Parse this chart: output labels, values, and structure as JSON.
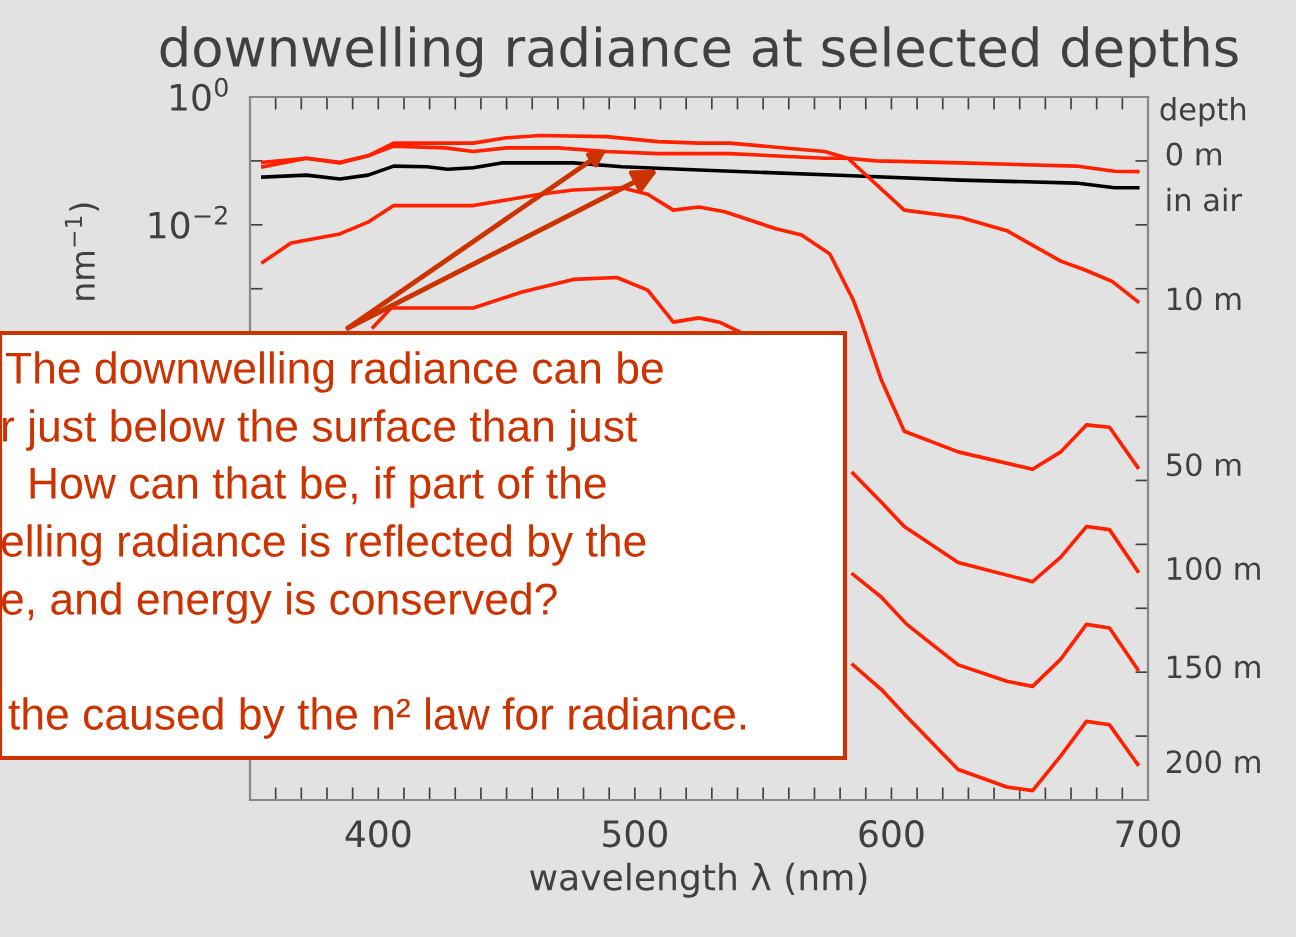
{
  "chart_data": {
    "type": "line",
    "title": "downwelling radiance at selected depths",
    "xlabel": "wavelength λ (nm)",
    "ylabel": "nm$^{−1}$)",
    "legend_title": "depth",
    "log": "y",
    "grid": false,
    "legend": false,
    "marker": "none",
    "line_style": "solid",
    "xlim": [
      350,
      700
    ],
    "ylim": [
      1e-11,
      1
    ],
    "xticks": [
      {
        "value": 360,
        "label": null
      },
      {
        "value": 370,
        "label": null
      },
      {
        "value": 380,
        "label": null
      },
      {
        "value": 390,
        "label": null
      },
      400,
      {
        "value": 410,
        "label": null
      },
      {
        "value": 420,
        "label": null
      },
      {
        "value": 430,
        "label": null
      },
      {
        "value": 440,
        "label": null
      },
      {
        "value": 450,
        "label": null
      },
      {
        "value": 460,
        "label": null
      },
      {
        "value": 470,
        "label": null
      },
      {
        "value": 480,
        "label": null
      },
      {
        "value": 490,
        "label": null
      },
      500,
      {
        "value": 510,
        "label": null
      },
      {
        "value": 520,
        "label": null
      },
      {
        "value": 530,
        "label": null
      },
      {
        "value": 540,
        "label": null
      },
      {
        "value": 550,
        "label": null
      },
      {
        "value": 560,
        "label": null
      },
      {
        "value": 570,
        "label": null
      },
      {
        "value": 580,
        "label": null
      },
      {
        "value": 590,
        "label": null
      },
      600,
      {
        "value": 610,
        "label": null
      },
      {
        "value": 620,
        "label": null
      },
      {
        "value": 630,
        "label": null
      },
      {
        "value": 640,
        "label": null
      },
      {
        "value": 650,
        "label": null
      },
      {
        "value": 660,
        "label": null
      },
      {
        "value": 670,
        "label": null
      },
      {
        "value": 680,
        "label": null
      },
      {
        "value": 690,
        "label": null
      },
      700
    ],
    "yticks": [
      {
        "value": 1,
        "label": "10$^{0}$"
      },
      {
        "value": 0.1,
        "label": null
      },
      {
        "value": 0.01,
        "label": "10$^{−2}$"
      },
      {
        "value": 0.001,
        "label": null
      },
      {
        "value": 0.0001,
        "label": null
      },
      {
        "value": 1e-05,
        "label": null
      },
      {
        "value": 1e-06,
        "label": null
      },
      {
        "value": 1e-07,
        "label": null
      },
      {
        "value": 1e-08,
        "label": null
      },
      {
        "value": 1e-09,
        "label": null
      },
      {
        "value": 1e-10,
        "label": null
      }
    ],
    "series": [
      {
        "name": "in air",
        "color": "#000000",
        "x": [
          355,
          372,
          385,
          396,
          406,
          419,
          427,
          437,
          448,
          476,
          495,
          525,
          582,
          627,
          672,
          687,
          696
        ],
        "values": [
          0.056,
          0.06,
          0.052,
          0.06,
          0.083,
          0.081,
          0.074,
          0.078,
          0.093,
          0.093,
          0.081,
          0.072,
          0.059,
          0.05,
          0.045,
          0.038,
          0.038
        ]
      },
      {
        "name": "0 m",
        "color": "#ff2000",
        "x": [
          355,
          372,
          385,
          396,
          406,
          437,
          450,
          463,
          489,
          509,
          525,
          537,
          574,
          583,
          594,
          627,
          672,
          687,
          696
        ],
        "values": [
          0.095,
          0.11,
          0.095,
          0.12,
          0.19,
          0.19,
          0.23,
          0.25,
          0.24,
          0.2,
          0.19,
          0.19,
          0.14,
          0.11,
          0.1,
          0.093,
          0.083,
          0.069,
          0.068
        ]
      },
      {
        "name": "10 m",
        "color": "#ff2000",
        "x": [
          355,
          372,
          385,
          396,
          406,
          426,
          437,
          450,
          470,
          489,
          509,
          525,
          537,
          574,
          583,
          605,
          627,
          645,
          666,
          675,
          686,
          696
        ],
        "values": [
          0.081,
          0.11,
          0.093,
          0.12,
          0.17,
          0.16,
          0.14,
          0.16,
          0.16,
          0.14,
          0.13,
          0.13,
          0.13,
          0.11,
          0.11,
          0.017,
          0.013,
          0.0081,
          0.0027,
          0.002,
          0.0013,
          0.00063
        ]
      },
      {
        "name": "50 m",
        "color": "#ff2000",
        "x": [
          355,
          366,
          385,
          396,
          406,
          437,
          463,
          476,
          495,
          505,
          515,
          525,
          535,
          555,
          565,
          576,
          585,
          588,
          596,
          605,
          626,
          655,
          666,
          676,
          685,
          696
        ],
        "values": [
          0.0026,
          0.0052,
          0.0072,
          0.011,
          0.02,
          0.02,
          0.03,
          0.035,
          0.038,
          0.03,
          0.017,
          0.019,
          0.016,
          0.0087,
          0.0069,
          0.0035,
          0.00068,
          0.00033,
          3.8e-05,
          5.9e-06,
          2.8e-06,
          1.5e-06,
          2.8e-06,
          7.4e-06,
          6.8e-06,
          1.6e-06
        ]
      },
      {
        "name": "100 m",
        "color": "#ff2000",
        "x": [
          398,
          405,
          424,
          437,
          456,
          476,
          493,
          505,
          515,
          525,
          533,
          541,
          560,
          585,
          596,
          605,
          626,
          655,
          666,
          676,
          685,
          696
        ],
        "values": [
          0.00025,
          0.0005,
          0.0005,
          0.0005,
          0.00089,
          0.0014,
          0.0015,
          0.00095,
          0.0003,
          0.00035,
          0.0003,
          0.00021,
          null,
          1.3e-06,
          4.6e-07,
          1.9e-07,
          5.2e-08,
          2.6e-08,
          6.3e-08,
          1.9e-07,
          1.7e-07,
          3.8e-08
        ]
      },
      {
        "name": "150 m",
        "color": "#ff2000",
        "x": [
          585,
          596,
          606,
          626,
          645,
          655,
          666,
          676,
          685,
          696
        ],
        "values": [
          3.4e-08,
          1.5e-08,
          5.6e-09,
          1.3e-09,
          7.2e-10,
          6e-10,
          1.6e-09,
          5.6e-09,
          4.9e-09,
          1.1e-09
        ]
      },
      {
        "name": "200 m",
        "color": "#ff2000",
        "x": [
          585,
          596,
          606,
          626,
          645,
          655,
          666,
          676,
          685,
          696
        ],
        "values": [
          1.3e-09,
          5.4e-10,
          2e-10,
          3e-11,
          1.6e-11,
          1.4e-11,
          4.9e-11,
          1.7e-10,
          1.5e-10,
          3.6e-11
        ]
      }
    ],
    "annotations": [
      {
        "text": "The downwelling radiance can be",
        "x": 489,
        "y": 0.15
      },
      "r just below the surface than just",
      "How can that be, if part of the",
      "elling radiance is reflected by the",
      "e, and energy is conserved?",
      "the caused by the n² law for radiance."
    ]
  }
}
